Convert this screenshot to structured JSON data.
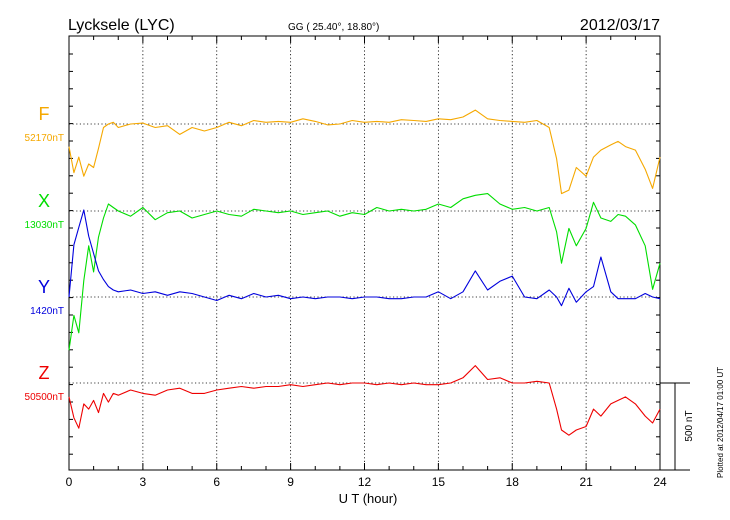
{
  "header": {
    "station": "Lycksele (LYC)",
    "coords": "GG ( 25.40°,  18.80°)",
    "date": "2012/03/17"
  },
  "scale_label": "500 nT",
  "plotted_note": "Plotted at 2012/04/17 01:00 UT",
  "chart_data": {
    "type": "line",
    "xlabel": "U T (hour)",
    "xlim": [
      0,
      24
    ],
    "xticks": [
      0,
      3,
      6,
      9,
      12,
      15,
      18,
      21,
      24
    ],
    "grid": true,
    "scale_bar_nT": 500,
    "series": [
      {
        "name": "F",
        "baseline_label": "52170nT",
        "baseline_nT": 52170,
        "color": "#f5a800",
        "x": [
          0,
          0.2,
          0.4,
          0.6,
          0.8,
          1.0,
          1.2,
          1.4,
          1.6,
          1.8,
          2.0,
          2.5,
          3.0,
          3.5,
          4.0,
          4.5,
          5.0,
          5.5,
          6.0,
          6.5,
          7.0,
          7.5,
          8.0,
          8.5,
          9.0,
          9.5,
          10.0,
          10.5,
          11.0,
          11.5,
          12.0,
          12.5,
          13.0,
          13.5,
          14.0,
          14.5,
          15.0,
          15.5,
          16.0,
          16.5,
          17.0,
          17.5,
          18.0,
          18.5,
          19.0,
          19.5,
          19.8,
          20.0,
          20.3,
          20.6,
          21.0,
          21.3,
          21.6,
          22.0,
          22.3,
          22.6,
          23.0,
          23.4,
          23.7,
          24.0
        ],
        "values": [
          -130,
          -280,
          -190,
          -300,
          -230,
          -250,
          -140,
          -20,
          0,
          10,
          -20,
          0,
          5,
          -20,
          -10,
          -60,
          -20,
          -40,
          -20,
          10,
          -10,
          20,
          10,
          15,
          10,
          30,
          15,
          -5,
          0,
          20,
          10,
          15,
          10,
          25,
          20,
          15,
          30,
          25,
          40,
          80,
          30,
          20,
          15,
          10,
          20,
          -20,
          -200,
          -400,
          -380,
          -250,
          -300,
          -190,
          -150,
          -120,
          -100,
          -130,
          -150,
          -260,
          -370,
          -190
        ]
      },
      {
        "name": "X",
        "baseline_label": "13030nT",
        "baseline_nT": 13030,
        "color": "#00dd00",
        "x": [
          0,
          0.2,
          0.4,
          0.6,
          0.8,
          1.0,
          1.2,
          1.4,
          1.6,
          1.8,
          2.0,
          2.5,
          3.0,
          3.5,
          4.0,
          4.5,
          5.0,
          5.5,
          6.0,
          6.5,
          7.0,
          7.5,
          8.0,
          8.5,
          9.0,
          9.5,
          10.0,
          10.5,
          11.0,
          11.5,
          12.0,
          12.5,
          13.0,
          13.5,
          14.0,
          14.5,
          15.0,
          15.5,
          16.0,
          16.5,
          17.0,
          17.5,
          18.0,
          18.5,
          19.0,
          19.5,
          19.8,
          20.0,
          20.3,
          20.6,
          21.0,
          21.3,
          21.6,
          22.0,
          22.3,
          22.6,
          23.0,
          23.4,
          23.7,
          24.0
        ],
        "values": [
          -800,
          -600,
          -700,
          -400,
          -200,
          -350,
          -150,
          -40,
          40,
          20,
          0,
          -30,
          20,
          -50,
          -10,
          0,
          -40,
          -20,
          0,
          -20,
          -30,
          10,
          0,
          -10,
          0,
          -20,
          -10,
          0,
          -30,
          -10,
          -20,
          20,
          0,
          10,
          0,
          10,
          40,
          20,
          70,
          90,
          100,
          40,
          10,
          20,
          0,
          20,
          -120,
          -300,
          -100,
          -200,
          -100,
          50,
          -40,
          -60,
          -20,
          -30,
          -80,
          -200,
          -450,
          -300
        ]
      },
      {
        "name": "Y",
        "baseline_label": "1420nT",
        "baseline_nT": 1420,
        "color": "#0000dd",
        "x": [
          0,
          0.2,
          0.4,
          0.6,
          0.8,
          1.0,
          1.2,
          1.4,
          1.6,
          1.8,
          2.0,
          2.5,
          3.0,
          3.5,
          4.0,
          4.5,
          5.0,
          5.5,
          6.0,
          6.5,
          7.0,
          7.5,
          8.0,
          8.5,
          9.0,
          9.5,
          10.0,
          10.5,
          11.0,
          11.5,
          12.0,
          12.5,
          13.0,
          13.5,
          14.0,
          14.5,
          15.0,
          15.5,
          16.0,
          16.5,
          17.0,
          17.5,
          18.0,
          18.5,
          19.0,
          19.5,
          19.8,
          20.0,
          20.3,
          20.6,
          21.0,
          21.3,
          21.6,
          22.0,
          22.3,
          22.6,
          23.0,
          23.4,
          23.7,
          24.0
        ],
        "values": [
          0,
          300,
          400,
          500,
          350,
          250,
          150,
          100,
          60,
          40,
          30,
          40,
          20,
          30,
          10,
          30,
          20,
          0,
          -20,
          10,
          -10,
          20,
          0,
          10,
          -10,
          0,
          -10,
          0,
          0,
          -10,
          0,
          0,
          -10,
          -10,
          0,
          0,
          30,
          -10,
          30,
          150,
          40,
          90,
          120,
          0,
          -10,
          40,
          0,
          -50,
          50,
          -30,
          30,
          60,
          230,
          30,
          -10,
          -10,
          -10,
          20,
          0,
          -10
        ]
      },
      {
        "name": "Z",
        "baseline_label": "50500nT",
        "baseline_nT": 50500,
        "color": "#ee0000",
        "x": [
          0,
          0.2,
          0.4,
          0.6,
          0.8,
          1.0,
          1.2,
          1.4,
          1.6,
          1.8,
          2.0,
          2.5,
          3.0,
          3.5,
          4.0,
          4.5,
          5.0,
          5.5,
          6.0,
          6.5,
          7.0,
          7.5,
          8.0,
          8.5,
          9.0,
          9.5,
          10.0,
          10.5,
          11.0,
          11.5,
          12.0,
          12.5,
          13.0,
          13.5,
          14.0,
          14.5,
          15.0,
          15.5,
          16.0,
          16.5,
          17.0,
          17.5,
          18.0,
          18.5,
          19.0,
          19.5,
          19.8,
          20.0,
          20.3,
          20.6,
          21.0,
          21.3,
          21.6,
          22.0,
          22.3,
          22.6,
          23.0,
          23.4,
          23.7,
          24.0
        ],
        "values": [
          -80,
          -200,
          -260,
          -120,
          -150,
          -100,
          -170,
          -60,
          -110,
          -60,
          -70,
          -40,
          -60,
          -70,
          -40,
          -30,
          -60,
          -60,
          -40,
          -30,
          -20,
          -30,
          -20,
          -20,
          -10,
          -20,
          -10,
          0,
          -10,
          0,
          0,
          -10,
          0,
          -10,
          0,
          -10,
          -10,
          0,
          30,
          100,
          20,
          30,
          0,
          0,
          10,
          0,
          -150,
          -270,
          -300,
          -270,
          -250,
          -150,
          -190,
          -120,
          -100,
          -80,
          -120,
          -190,
          -230,
          -150
        ]
      }
    ]
  }
}
